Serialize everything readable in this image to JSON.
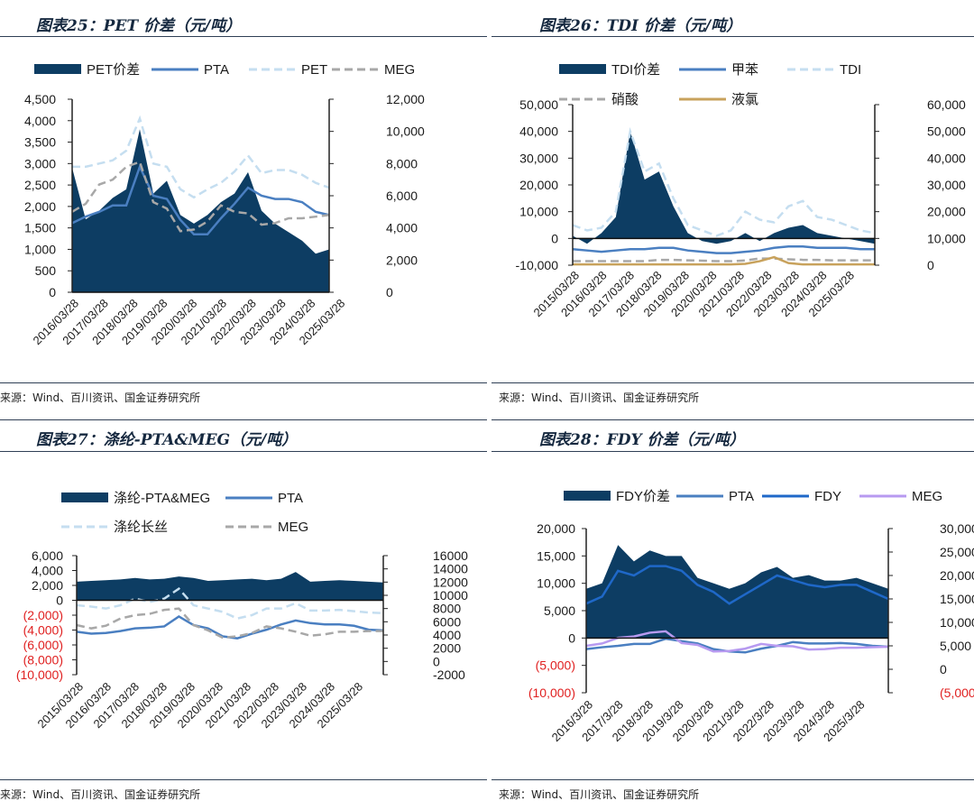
{
  "colors": {
    "spread": "#0d3d63",
    "blue": "#4a7fc1",
    "lightblue": "#c5def0",
    "gray": "#a8a8a8",
    "gold": "#c8a25c",
    "fdyblue": "#1f68c8",
    "purple": "#b79af0",
    "neg": "#e02020"
  },
  "charts": [
    {
      "title": "图表25：PET 价差（元/吨）",
      "source": "来源：Wind、百川资讯、国金证券研究所",
      "legend": [
        {
          "label": "PET价差",
          "kind": "area",
          "color": "#0d3d63"
        },
        {
          "label": "PTA",
          "kind": "line",
          "color": "#4a7fc1"
        },
        {
          "label": "PET",
          "kind": "dash",
          "color": "#c5def0"
        },
        {
          "label": "MEG",
          "kind": "dash",
          "color": "#a8a8a8"
        }
      ],
      "left_ticks": [
        "4,500",
        "4,000",
        "3,500",
        "3,000",
        "2,500",
        "2,000",
        "1,500",
        "1,000",
        "500",
        "0"
      ],
      "right_ticks": [
        "12,000",
        "10,000",
        "8,000",
        "6,000",
        "4,000",
        "2,000",
        "0"
      ],
      "x_ticks": [
        "2016/03/28",
        "2017/03/28",
        "2018/03/28",
        "2019/03/28",
        "2020/03/28",
        "2021/03/28",
        "2022/03/28",
        "2023/03/28",
        "2024/03/28",
        "2025/03/28"
      ]
    },
    {
      "title": "图表26：TDI 价差（元/吨）",
      "source": "来源：Wind、百川资讯、国金证券研究所",
      "legend": [
        {
          "label": "TDI价差",
          "kind": "area",
          "color": "#0d3d63"
        },
        {
          "label": "甲苯",
          "kind": "line",
          "color": "#4a7fc1"
        },
        {
          "label": "TDI",
          "kind": "dash",
          "color": "#c5def0"
        },
        {
          "label": "硝酸",
          "kind": "dash",
          "color": "#a8a8a8"
        },
        {
          "label": "液氯",
          "kind": "line",
          "color": "#c8a25c"
        }
      ],
      "left_ticks": [
        "50,000",
        "40,000",
        "30,000",
        "20,000",
        "10,000",
        "0",
        "-10,000"
      ],
      "right_ticks": [
        "60,000",
        "50,000",
        "40,000",
        "30,000",
        "20,000",
        "10,000",
        "0"
      ],
      "x_ticks": [
        "2015/03/28",
        "2016/03/28",
        "2017/03/28",
        "2018/03/28",
        "2019/03/28",
        "2020/03/28",
        "2021/03/28",
        "2022/03/28",
        "2023/03/28",
        "2024/03/28",
        "2025/03/28"
      ]
    },
    {
      "title": "图表27：涤纶-PTA&MEG（元/吨）",
      "source": "来源：Wind、百川资讯、国金证券研究所",
      "legend": [
        {
          "label": "涤纶-PTA&MEG",
          "kind": "area",
          "color": "#0d3d63"
        },
        {
          "label": "PTA",
          "kind": "line",
          "color": "#4a7fc1"
        },
        {
          "label": "涤纶长丝",
          "kind": "dash",
          "color": "#c5def0"
        },
        {
          "label": "MEG",
          "kind": "dash",
          "color": "#a8a8a8"
        }
      ],
      "left_ticks": [
        "6,000",
        "4,000",
        "2,000",
        "0",
        "(2,000)",
        "(4,000)",
        "(6,000)",
        "(8,000)",
        "(10,000)"
      ],
      "right_ticks": [
        "16000",
        "14000",
        "12000",
        "10000",
        "8000",
        "6000",
        "4000",
        "2000",
        "0",
        "-2000"
      ],
      "x_ticks": [
        "2015/03/28",
        "2016/03/28",
        "2017/03/28",
        "2018/03/28",
        "2019/03/28",
        "2020/03/28",
        "2021/03/28",
        "2022/03/28",
        "2023/03/28",
        "2024/03/28",
        "2025/03/28"
      ]
    },
    {
      "title": "图表28：FDY 价差（元/吨）",
      "source": "来源：Wind、百川资讯、国金证券研究所",
      "legend": [
        {
          "label": "FDY价差",
          "kind": "area",
          "color": "#0d3d63"
        },
        {
          "label": "PTA",
          "kind": "line",
          "color": "#4a7fc1"
        },
        {
          "label": "FDY",
          "kind": "line",
          "color": "#1f68c8"
        },
        {
          "label": "MEG",
          "kind": "line",
          "color": "#b79af0"
        }
      ],
      "left_ticks": [
        "20,000",
        "15,000",
        "10,000",
        "5,000",
        "0",
        "(5,000)",
        "(10,000)"
      ],
      "right_ticks": [
        "30,000",
        "25,000",
        "20,000",
        "15,000",
        "10,000",
        "5,000",
        "0",
        "(5,000)"
      ],
      "x_ticks": [
        "2016/3/28",
        "2017/3/28",
        "2018/3/28",
        "2019/3/28",
        "2020/3/28",
        "2021/3/28",
        "2022/3/28",
        "2023/3/28",
        "2024/3/28",
        "2025/3/28"
      ]
    }
  ],
  "chart_data": [
    {
      "type": "area",
      "x": [
        "2016",
        "2016.5",
        "2017",
        "2017.5",
        "2018",
        "2018.5",
        "2019",
        "2019.5",
        "2020",
        "2020.5",
        "2021",
        "2021.5",
        "2022",
        "2022.5",
        "2023",
        "2023.5",
        "2024",
        "2024.5",
        "2025",
        "2025.3"
      ],
      "series": [
        {
          "name": "PET价差",
          "axis": "left",
          "values": [
            2900,
            1700,
            1900,
            2200,
            2400,
            3800,
            2300,
            2600,
            1800,
            1600,
            1800,
            2100,
            2300,
            2800,
            1900,
            1600,
            1400,
            1200,
            900,
            1000
          ]
        },
        {
          "name": "PTA",
          "axis": "right",
          "values": [
            4300,
            4700,
            5000,
            5400,
            5400,
            7800,
            6000,
            5800,
            4500,
            3600,
            3600,
            4600,
            5500,
            6500,
            6000,
            5800,
            5800,
            5600,
            5000,
            4800
          ]
        },
        {
          "name": "PET",
          "axis": "right",
          "values": [
            7800,
            7800,
            8000,
            8200,
            8800,
            10800,
            8000,
            7800,
            6400,
            5900,
            6400,
            6800,
            7500,
            8500,
            7400,
            7600,
            7600,
            7300,
            6800,
            6500
          ]
        },
        {
          "name": "MEG",
          "axis": "right",
          "values": [
            5000,
            5500,
            6700,
            7000,
            7800,
            8100,
            5600,
            5200,
            3800,
            3900,
            4400,
            5400,
            5000,
            4900,
            4200,
            4300,
            4600,
            4600,
            4700,
            4800
          ]
        }
      ],
      "ylim_left": [
        0,
        4500
      ],
      "ylim_right": [
        0,
        12000
      ]
    },
    {
      "type": "area",
      "x": [
        "2015",
        "2015.5",
        "2016",
        "2016.5",
        "2017",
        "2017.5",
        "2018",
        "2018.5",
        "2019",
        "2019.5",
        "2020",
        "2020.5",
        "2021",
        "2021.5",
        "2022",
        "2022.5",
        "2023",
        "2023.5",
        "2024",
        "2024.5",
        "2025",
        "2025.3"
      ],
      "series": [
        {
          "name": "TDI价差",
          "axis": "left",
          "values": [
            1000,
            -2000,
            2000,
            8000,
            40000,
            22000,
            25000,
            12000,
            2000,
            -1000,
            -2000,
            -1000,
            2000,
            -1000,
            2000,
            4000,
            5000,
            2000,
            1000,
            0,
            -1000,
            -2000
          ]
        },
        {
          "name": "甲苯",
          "axis": "right",
          "values": [
            6000,
            5500,
            5000,
            5500,
            6000,
            6000,
            6500,
            6500,
            5500,
            5000,
            4500,
            4500,
            5000,
            5500,
            6500,
            7000,
            7000,
            6500,
            6500,
            6500,
            6000,
            6000
          ]
        },
        {
          "name": "TDI",
          "axis": "right",
          "values": [
            15000,
            13000,
            14000,
            20000,
            50000,
            35000,
            38000,
            25000,
            15000,
            13000,
            11000,
            13000,
            20000,
            17000,
            16000,
            22000,
            24000,
            18000,
            17000,
            15000,
            13000,
            12000
          ]
        },
        {
          "name": "硝酸",
          "axis": "right",
          "values": [
            1500,
            1500,
            1500,
            1500,
            1500,
            1500,
            2000,
            2000,
            1800,
            1700,
            1500,
            1500,
            1800,
            2500,
            2500,
            2200,
            2000,
            2000,
            1800,
            1800,
            1800,
            1800
          ]
        },
        {
          "name": "液氯",
          "axis": "right",
          "values": [
            300,
            300,
            300,
            300,
            300,
            300,
            300,
            300,
            300,
            300,
            300,
            300,
            500,
            1500,
            3000,
            800,
            300,
            300,
            300,
            300,
            300,
            300
          ]
        }
      ],
      "ylim_left": [
        -10000,
        50000
      ],
      "ylim_right": [
        0,
        60000
      ]
    },
    {
      "type": "area",
      "x": [
        "2015",
        "2015.5",
        "2016",
        "2016.5",
        "2017",
        "2017.5",
        "2018",
        "2018.5",
        "2019",
        "2019.5",
        "2020",
        "2020.5",
        "2021",
        "2021.5",
        "2022",
        "2022.5",
        "2023",
        "2023.5",
        "2024",
        "2024.5",
        "2025",
        "2025.3"
      ],
      "series": [
        {
          "name": "涤纶-PTA&MEG",
          "axis": "left",
          "values": [
            2500,
            2600,
            2700,
            2800,
            3000,
            2800,
            2900,
            3200,
            3000,
            2600,
            2700,
            2800,
            2900,
            2700,
            2900,
            3800,
            2500,
            2600,
            2700,
            2600,
            2500,
            2400
          ]
        },
        {
          "name": "PTA",
          "axis": "right",
          "values": [
            4500,
            4200,
            4300,
            4600,
            5000,
            5100,
            5300,
            6800,
            5500,
            5000,
            3800,
            3500,
            4200,
            4800,
            5600,
            6200,
            5800,
            5600,
            5600,
            5400,
            4800,
            4700
          ]
        },
        {
          "name": "涤纶长丝",
          "axis": "right",
          "values": [
            8500,
            8300,
            8000,
            8500,
            9500,
            9000,
            9500,
            11000,
            8500,
            8000,
            7500,
            6500,
            7000,
            8000,
            8000,
            8800,
            7700,
            7700,
            7800,
            7600,
            7400,
            7300
          ]
        },
        {
          "name": "MEG",
          "axis": "right",
          "values": [
            5500,
            5000,
            5400,
            6500,
            7000,
            7200,
            7800,
            8000,
            5500,
            4700,
            3600,
            3800,
            4300,
            5300,
            5000,
            4500,
            3900,
            4100,
            4500,
            4500,
            4600,
            4600
          ]
        }
      ],
      "ylim_left": [
        -10000,
        6000
      ],
      "ylim_right": [
        -2000,
        16000
      ]
    },
    {
      "type": "area",
      "x": [
        "2016",
        "2016.5",
        "2017",
        "2017.5",
        "2018",
        "2018.5",
        "2019",
        "2019.5",
        "2020",
        "2020.5",
        "2021",
        "2021.5",
        "2022",
        "2022.5",
        "2023",
        "2023.5",
        "2024",
        "2024.5",
        "2025",
        "2025.3"
      ],
      "series": [
        {
          "name": "FDY价差",
          "axis": "left",
          "values": [
            9000,
            10000,
            17000,
            14000,
            16000,
            15000,
            15000,
            11000,
            10000,
            9000,
            10000,
            12000,
            13000,
            11000,
            11500,
            10500,
            10500,
            11000,
            10000,
            9000
          ]
        },
        {
          "name": "PTA",
          "axis": "right",
          "values": [
            4300,
            4700,
            5000,
            5400,
            5400,
            6500,
            6000,
            5500,
            4300,
            3800,
            3600,
            4400,
            5000,
            5800,
            5500,
            5500,
            5600,
            5400,
            5000,
            4800
          ]
        },
        {
          "name": "FDY",
          "axis": "right",
          "values": [
            14000,
            15500,
            21000,
            20000,
            22000,
            22000,
            21000,
            18000,
            16500,
            14000,
            16000,
            18000,
            20000,
            19000,
            18000,
            17500,
            18000,
            18000,
            16500,
            15000
          ]
        },
        {
          "name": "MEG",
          "axis": "right",
          "values": [
            5000,
            5500,
            6700,
            7000,
            7800,
            8100,
            5600,
            5200,
            3800,
            3900,
            4400,
            5400,
            5000,
            4900,
            4200,
            4300,
            4600,
            4600,
            4700,
            4800
          ]
        }
      ],
      "ylim_left": [
        -10000,
        20000
      ],
      "ylim_right": [
        -5000,
        30000
      ]
    }
  ]
}
